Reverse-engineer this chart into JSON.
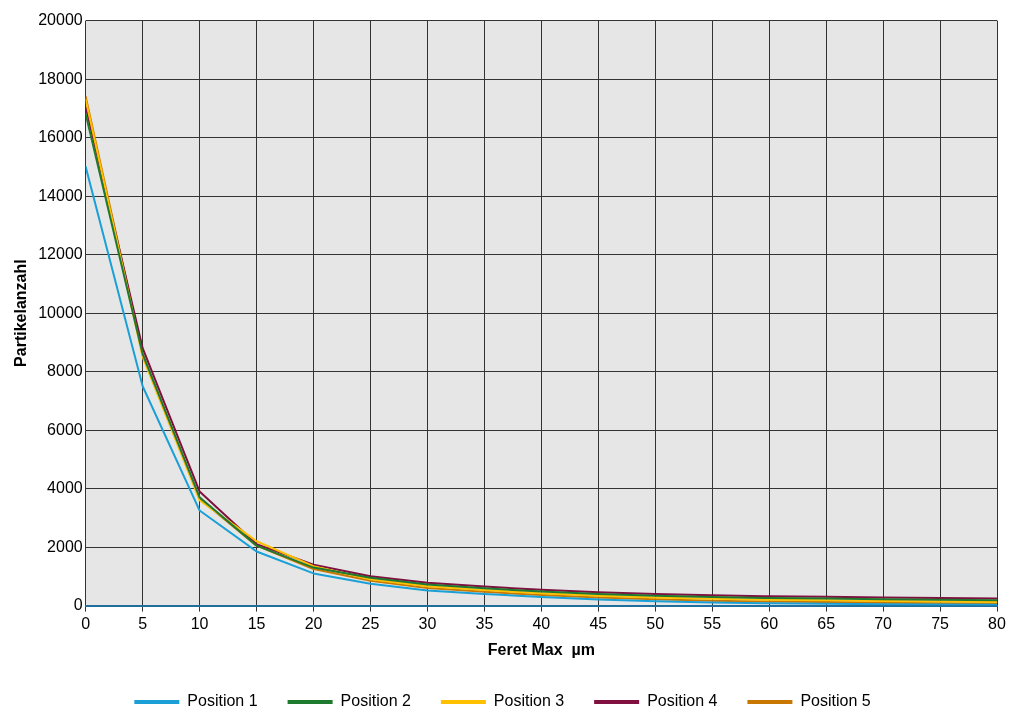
{
  "chart_data": {
    "type": "line",
    "xlabel": "Feret Max  µm",
    "ylabel": "Partikelanzahl",
    "x": [
      0,
      5,
      10,
      15,
      20,
      25,
      30,
      35,
      40,
      45,
      50,
      55,
      60,
      65,
      70,
      75,
      80
    ],
    "xlim": [
      0,
      80
    ],
    "xticks": [
      0,
      5,
      10,
      15,
      20,
      25,
      30,
      35,
      40,
      45,
      50,
      55,
      60,
      65,
      70,
      75,
      80
    ],
    "ylim": [
      0,
      20000
    ],
    "yticks": [
      0,
      2000,
      4000,
      6000,
      8000,
      10000,
      12000,
      14000,
      16000,
      18000,
      20000
    ],
    "grid": true,
    "legend": "bottom",
    "marker": "none",
    "line_style": "solid",
    "series": [
      {
        "name": "Position 1",
        "color": "#1aa0d6",
        "values": [
          15000,
          7500,
          3250,
          1850,
          1100,
          750,
          520,
          400,
          290,
          210,
          150,
          110,
          80,
          60,
          50,
          40,
          30
        ]
      },
      {
        "name": "Position 2",
        "color": "#1e7a2e",
        "values": [
          16800,
          8600,
          3700,
          2050,
          1300,
          950,
          720,
          590,
          480,
          400,
          340,
          290,
          260,
          240,
          220,
          200,
          180
        ]
      },
      {
        "name": "Position 3",
        "color": "#ffc000",
        "values": [
          17300,
          8500,
          3600,
          2200,
          1350,
          900,
          660,
          530,
          420,
          340,
          280,
          230,
          200,
          180,
          160,
          140,
          120
        ]
      },
      {
        "name": "Position 4",
        "color": "#7f1040",
        "values": [
          17050,
          8800,
          3900,
          2100,
          1400,
          1000,
          780,
          650,
          540,
          460,
          400,
          350,
          320,
          300,
          280,
          260,
          240
        ]
      },
      {
        "name": "Position 5",
        "color": "#c87800",
        "values": [
          17400,
          8600,
          3650,
          2050,
          1250,
          850,
          600,
          470,
          360,
          280,
          220,
          170,
          140,
          120,
          100,
          80,
          70
        ]
      }
    ]
  }
}
